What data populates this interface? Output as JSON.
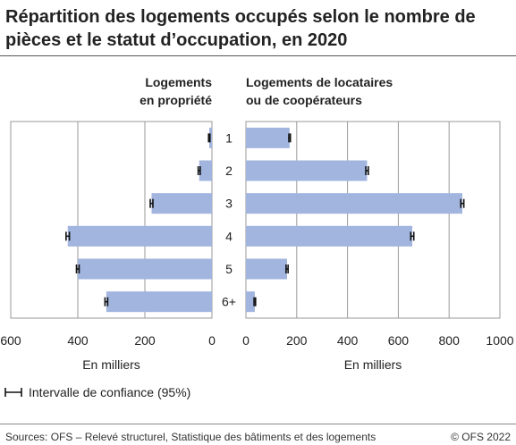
{
  "title": "Répartition des logements occupés selon le nombre de pièces et le statut d’occupation, en 2020",
  "legend": {
    "label": "Intervalle de confiance (95%)"
  },
  "footer": {
    "source": "Sources: OFS – Relevé structurel, Statistique des bâtiments et des logements",
    "copyright": "© OFS 2022"
  },
  "colors": {
    "bar": "#a1b5df",
    "grid": "#999999",
    "error": "#111111"
  },
  "chart_data": {
    "type": "bar",
    "orientation": "horizontal",
    "categories": [
      "1",
      "2",
      "3",
      "4",
      "5",
      "6+"
    ],
    "panels": [
      {
        "title_lines": [
          "Logements",
          "en propriété"
        ],
        "xlabel": "En milliers",
        "direction": "reversed",
        "xlim": [
          0,
          600
        ],
        "ticks": [
          0,
          200,
          400,
          600
        ],
        "tick_labels": [
          "0",
          "200",
          "400",
          "600"
        ],
        "values": [
          8,
          38,
          180,
          430,
          400,
          315
        ],
        "ci": [
          2,
          3,
          4,
          5,
          4,
          4
        ]
      },
      {
        "title_lines": [
          "Logements de locataires",
          "ou de coopérateurs"
        ],
        "xlabel": "En milliers",
        "direction": "normal",
        "xlim": [
          0,
          1000
        ],
        "ticks": [
          0,
          200,
          400,
          600,
          800,
          1000
        ],
        "tick_labels": [
          "0",
          "200",
          "400",
          "600",
          "800",
          "1000"
        ],
        "values": [
          172,
          477,
          852,
          655,
          162,
          35
        ],
        "ci": [
          3,
          5,
          6,
          6,
          4,
          3
        ]
      }
    ],
    "grid": true
  }
}
